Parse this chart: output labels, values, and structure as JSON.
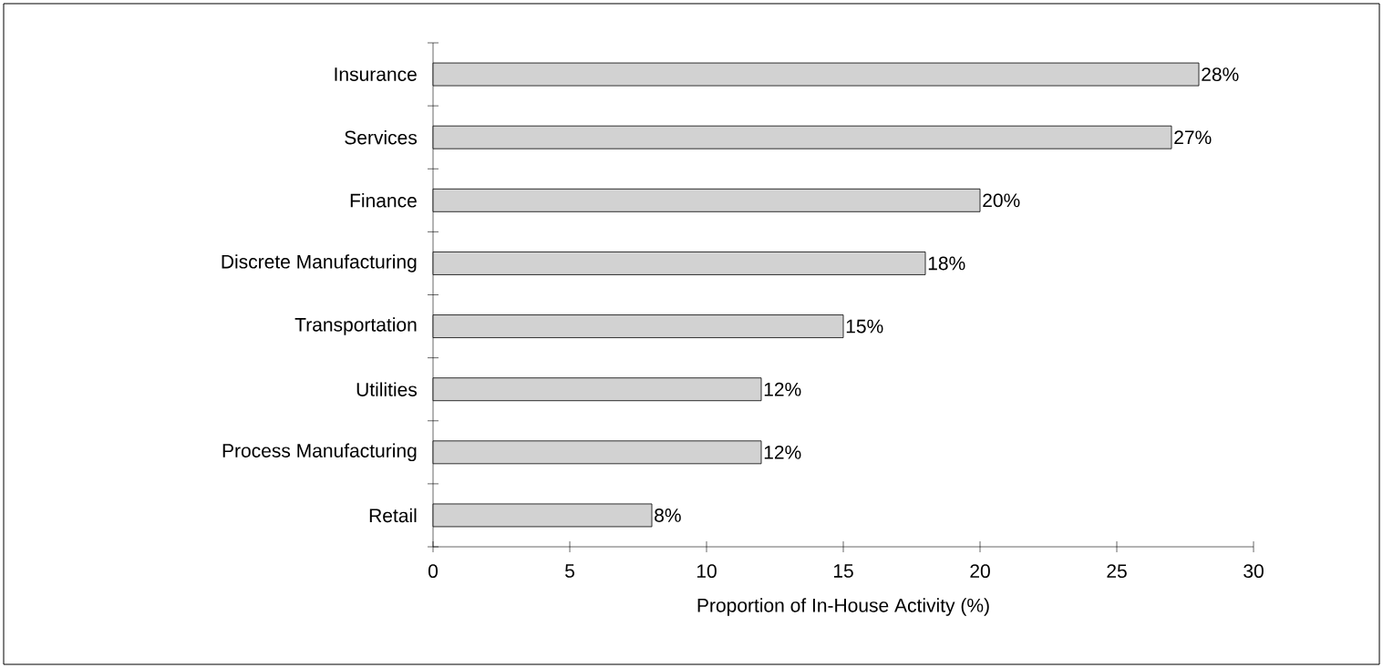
{
  "chart_data": {
    "type": "bar",
    "orientation": "horizontal",
    "xlabel": "Proportion of In-House Activity (%)",
    "categories": [
      "Insurance",
      "Services",
      "Finance",
      "Discrete Manufacturing",
      "Transportation",
      "Utilities",
      "Process Manufacturing",
      "Retail"
    ],
    "values": [
      28,
      27,
      20,
      18,
      15,
      12,
      12,
      8
    ],
    "value_labels": [
      "28%",
      "27%",
      "20%",
      "18%",
      "15%",
      "12%",
      "12%",
      "8%"
    ],
    "color": "#d2d2d2",
    "xlim": [
      0,
      30
    ],
    "xticks": [
      0,
      5,
      10,
      15,
      20,
      25,
      30
    ]
  }
}
